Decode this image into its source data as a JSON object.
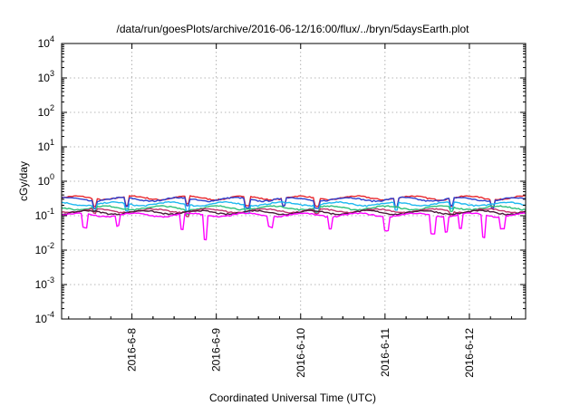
{
  "chart_data": {
    "type": "line",
    "title": "/data/run/goesPlots/archive/2016-06-12/16:00/flux/../bryn/5daysEarth.plot",
    "xlabel": "Coordinated Universal Time (UTC)",
    "ylabel": "cGy/day",
    "yscale": "log",
    "ylim": [
      0.0001,
      10000
    ],
    "y_ticks": [
      {
        "base": "10",
        "exp": "-4"
      },
      {
        "base": "10",
        "exp": "-3"
      },
      {
        "base": "10",
        "exp": "-2"
      },
      {
        "base": "10",
        "exp": "-1"
      },
      {
        "base": "10",
        "exp": "0"
      },
      {
        "base": "10",
        "exp": "1"
      },
      {
        "base": "10",
        "exp": "2"
      },
      {
        "base": "10",
        "exp": "3"
      },
      {
        "base": "10",
        "exp": "4"
      }
    ],
    "xlim": [
      "2016-06-07T04:00",
      "2016-06-12T16:00"
    ],
    "x_ticks": [
      "2016-6-8",
      "2016-6-9",
      "2016-6-10",
      "2016-6-11",
      "2016-6-12"
    ],
    "grid": true,
    "series": [
      {
        "color": "#e8262c",
        "base": 0.33,
        "dips": [
          [
            0.07,
            0.6
          ],
          [
            0.14,
            0.55
          ],
          [
            0.27,
            0.6
          ],
          [
            0.4,
            0.55
          ],
          [
            0.48,
            0.6
          ],
          [
            0.55,
            0.6
          ],
          [
            0.72,
            0.55
          ],
          [
            0.84,
            0.6
          ],
          [
            0.93,
            0.6
          ]
        ]
      },
      {
        "color": "#2b3fce",
        "base": 0.3,
        "dips": [
          [
            0.07,
            0.6
          ],
          [
            0.14,
            0.55
          ],
          [
            0.27,
            0.6
          ],
          [
            0.4,
            0.55
          ],
          [
            0.48,
            0.6
          ],
          [
            0.55,
            0.6
          ],
          [
            0.72,
            0.55
          ],
          [
            0.84,
            0.6
          ],
          [
            0.93,
            0.6
          ]
        ]
      },
      {
        "color": "#1eb8f0",
        "base": 0.22,
        "dips": [
          [
            0.07,
            0.65
          ],
          [
            0.14,
            0.6
          ],
          [
            0.27,
            0.65
          ],
          [
            0.4,
            0.6
          ],
          [
            0.55,
            0.65
          ],
          [
            0.72,
            0.6
          ],
          [
            0.84,
            0.65
          ]
        ]
      },
      {
        "color": "#2ec07a",
        "base": 0.17,
        "dips": [
          [
            0.07,
            0.75
          ],
          [
            0.27,
            0.75
          ],
          [
            0.55,
            0.75
          ],
          [
            0.84,
            0.75
          ]
        ]
      },
      {
        "color": "#c0346b",
        "base": 0.14,
        "dips": [
          [
            0.07,
            0.75
          ],
          [
            0.27,
            0.75
          ],
          [
            0.55,
            0.75
          ],
          [
            0.84,
            0.75
          ]
        ]
      },
      {
        "color": "#4a1a3a",
        "base": 0.125,
        "dips": []
      },
      {
        "color": "#ff00ff",
        "base": 0.105,
        "dips": [
          [
            0.05,
            0.4
          ],
          [
            0.12,
            0.5
          ],
          [
            0.26,
            0.35
          ],
          [
            0.31,
            0.2
          ],
          [
            0.45,
            0.5
          ],
          [
            0.58,
            0.45
          ],
          [
            0.7,
            0.4
          ],
          [
            0.8,
            0.3
          ],
          [
            0.83,
            0.35
          ],
          [
            0.86,
            0.4
          ],
          [
            0.91,
            0.22
          ],
          [
            0.95,
            0.45
          ]
        ]
      }
    ]
  }
}
